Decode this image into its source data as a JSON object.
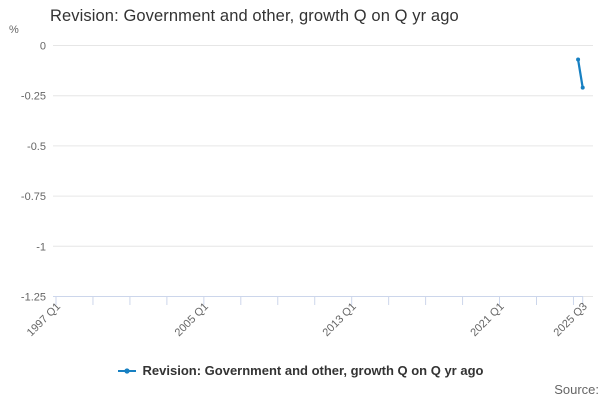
{
  "header": {
    "title": "Revision: Government and other, growth Q on Q yr ago"
  },
  "y_axis_unit": "%",
  "legend": {
    "label": "Revision: Government and other, growth Q on Q yr ago"
  },
  "footer": {
    "source_label": "Source:"
  },
  "colors": {
    "series_blue": "#1780c2",
    "grid": "#e6e6e6",
    "axis": "#ccd6eb",
    "axis_label_text": "#666666",
    "title_text": "#333333"
  },
  "chart_data": {
    "type": "line",
    "title": "Revision: Government and other, growth Q on Q yr ago",
    "xlabel": "",
    "ylabel": "%",
    "x": [
      "2025 Q2",
      "2025 Q3"
    ],
    "series": [
      {
        "name": "Revision: Government and other, growth Q on Q yr ago",
        "color": "#1780c2",
        "values": [
          -0.07,
          -0.21
        ]
      }
    ],
    "x_axis": {
      "range_start": "1997 Q1",
      "range_end": "2025 Q3",
      "major_tick_labels": [
        "1997 Q1",
        "2005 Q1",
        "2013 Q1",
        "2021 Q1",
        "2025 Q3"
      ],
      "minor_tick_every_quarters": 8,
      "label_rotation_deg": -45
    },
    "y_axis": {
      "tick_labels": [
        "0",
        "-0.25",
        "-0.5",
        "-0.75",
        "-1",
        "-1.25"
      ],
      "tick_values": [
        0,
        -0.25,
        -0.5,
        -0.75,
        -1,
        -1.25
      ],
      "ylim": [
        -1.25,
        0
      ]
    },
    "grid": true,
    "legend_position": "bottom"
  }
}
